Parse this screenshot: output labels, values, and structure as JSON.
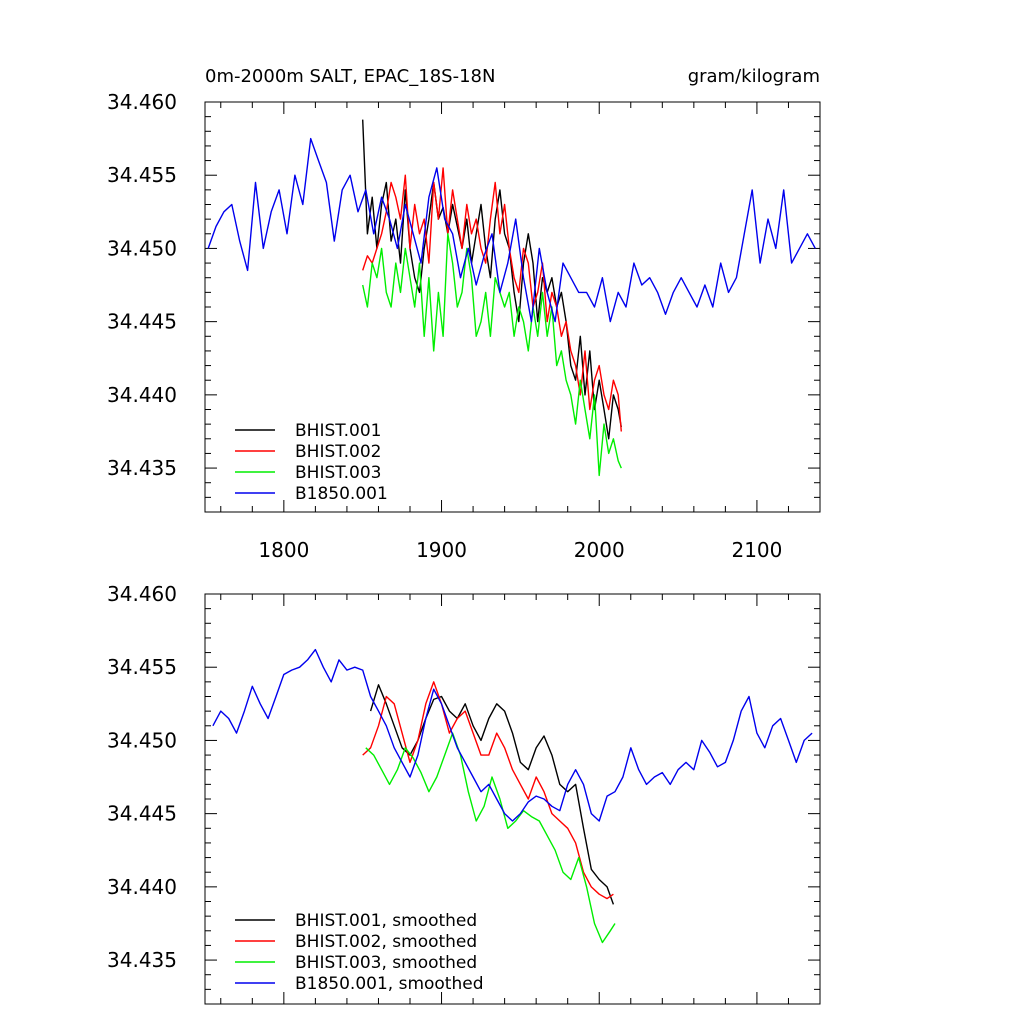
{
  "header": {
    "left_title": "0m-2000m SALT, EPAC_18S-18N",
    "right_title": "gram/kilogram"
  },
  "chart_data": [
    {
      "type": "line",
      "panel": "raw",
      "xlim": [
        1750,
        2140
      ],
      "ylim": [
        34.432,
        34.46
      ],
      "x_ticks": [
        "1800",
        "1900",
        "2000",
        "2100"
      ],
      "y_ticks": [
        "34.460",
        "34.455",
        "34.450",
        "34.445",
        "34.440",
        "34.435"
      ],
      "grid": false,
      "legend_position": "bottom-left",
      "series": [
        {
          "name": "BHIST.001",
          "color": "#000000",
          "x": [
            1850,
            1853,
            1856,
            1859,
            1862,
            1865,
            1868,
            1871,
            1874,
            1877,
            1880,
            1883,
            1886,
            1889,
            1892,
            1895,
            1898,
            1901,
            1904,
            1907,
            1910,
            1913,
            1916,
            1919,
            1922,
            1925,
            1928,
            1931,
            1934,
            1937,
            1940,
            1943,
            1946,
            1949,
            1952,
            1955,
            1958,
            1961,
            1964,
            1967,
            1970,
            1973,
            1976,
            1979,
            1982,
            1985,
            1988,
            1991,
            1994,
            1997,
            2000,
            2003,
            2006,
            2009,
            2012,
            2014
          ],
          "y": [
            34.4588,
            34.451,
            34.4535,
            34.45,
            34.453,
            34.4545,
            34.4505,
            34.452,
            34.449,
            34.454,
            34.45,
            34.448,
            34.447,
            34.45,
            34.452,
            34.4545,
            34.452,
            34.4528,
            34.451,
            34.453,
            34.4515,
            34.45,
            34.452,
            34.449,
            34.451,
            34.453,
            34.45,
            34.448,
            34.452,
            34.454,
            34.451,
            34.45,
            34.447,
            34.445,
            34.449,
            34.451,
            34.449,
            34.445,
            34.448,
            34.447,
            34.448,
            34.446,
            34.447,
            34.445,
            34.442,
            34.441,
            34.444,
            34.44,
            34.443,
            34.439,
            34.441,
            34.439,
            34.437,
            34.44,
            34.439,
            34.4378
          ]
        },
        {
          "name": "BHIST.002",
          "color": "#ff0000",
          "x": [
            1850,
            1853,
            1856,
            1859,
            1862,
            1865,
            1868,
            1871,
            1874,
            1877,
            1880,
            1883,
            1886,
            1889,
            1892,
            1895,
            1898,
            1901,
            1904,
            1907,
            1910,
            1913,
            1916,
            1919,
            1922,
            1925,
            1928,
            1931,
            1934,
            1937,
            1940,
            1943,
            1946,
            1949,
            1952,
            1955,
            1958,
            1961,
            1964,
            1967,
            1970,
            1973,
            1976,
            1979,
            1982,
            1985,
            1988,
            1991,
            1994,
            1997,
            2000,
            2003,
            2006,
            2009,
            2012,
            2014
          ],
          "y": [
            34.4485,
            34.4495,
            34.449,
            34.45,
            34.451,
            34.4525,
            34.4545,
            34.4535,
            34.452,
            34.455,
            34.45,
            34.453,
            34.451,
            34.452,
            34.449,
            34.4545,
            34.452,
            34.4555,
            34.451,
            34.454,
            34.452,
            34.45,
            34.453,
            34.451,
            34.452,
            34.45,
            34.449,
            34.452,
            34.4545,
            34.451,
            34.453,
            34.45,
            34.448,
            34.447,
            34.45,
            34.449,
            34.446,
            34.447,
            34.449,
            34.445,
            34.447,
            34.446,
            34.444,
            34.445,
            34.443,
            34.442,
            34.44,
            34.443,
            34.439,
            34.441,
            34.442,
            34.44,
            34.439,
            34.441,
            34.44,
            34.4375
          ]
        },
        {
          "name": "BHIST.003",
          "color": "#00ee00",
          "x": [
            1850,
            1853,
            1856,
            1859,
            1862,
            1865,
            1868,
            1871,
            1874,
            1877,
            1880,
            1883,
            1886,
            1889,
            1892,
            1895,
            1898,
            1901,
            1904,
            1907,
            1910,
            1913,
            1916,
            1919,
            1922,
            1925,
            1928,
            1931,
            1934,
            1937,
            1940,
            1943,
            1946,
            1949,
            1952,
            1955,
            1958,
            1961,
            1964,
            1967,
            1970,
            1973,
            1976,
            1979,
            1982,
            1985,
            1988,
            1991,
            1994,
            1997,
            2000,
            2003,
            2006,
            2009,
            2012,
            2014
          ],
          "y": [
            34.4475,
            34.446,
            34.449,
            34.448,
            34.45,
            34.447,
            34.446,
            34.449,
            34.447,
            34.45,
            34.448,
            34.446,
            34.449,
            34.444,
            34.448,
            34.443,
            34.447,
            34.444,
            34.451,
            34.449,
            34.446,
            34.447,
            34.45,
            34.448,
            34.444,
            34.445,
            34.447,
            34.444,
            34.448,
            34.447,
            34.446,
            34.447,
            34.444,
            34.446,
            34.445,
            34.443,
            34.446,
            34.444,
            34.447,
            34.444,
            34.446,
            34.442,
            34.443,
            34.441,
            34.44,
            34.438,
            34.441,
            34.439,
            34.437,
            34.44,
            34.4345,
            34.438,
            34.436,
            34.437,
            34.4355,
            34.435
          ]
        },
        {
          "name": "B1850.001",
          "color": "#0000ee",
          "x": [
            1752,
            1757,
            1762,
            1767,
            1772,
            1777,
            1782,
            1787,
            1792,
            1797,
            1802,
            1807,
            1812,
            1817,
            1822,
            1827,
            1832,
            1837,
            1842,
            1847,
            1852,
            1857,
            1862,
            1867,
            1872,
            1877,
            1882,
            1887,
            1892,
            1897,
            1902,
            1907,
            1912,
            1917,
            1922,
            1927,
            1932,
            1937,
            1942,
            1947,
            1952,
            1957,
            1962,
            1967,
            1972,
            1977,
            1982,
            1987,
            1992,
            1997,
            2002,
            2007,
            2012,
            2017,
            2022,
            2027,
            2032,
            2037,
            2042,
            2047,
            2052,
            2057,
            2062,
            2067,
            2072,
            2077,
            2082,
            2087,
            2092,
            2097,
            2102,
            2107,
            2112,
            2117,
            2122,
            2127,
            2132,
            2137
          ],
          "y": [
            34.45,
            34.4515,
            34.4525,
            34.453,
            34.4505,
            34.4485,
            34.4545,
            34.45,
            34.4525,
            34.454,
            34.451,
            34.455,
            34.453,
            34.4575,
            34.456,
            34.4545,
            34.4505,
            34.454,
            34.455,
            34.4525,
            34.454,
            34.451,
            34.4535,
            34.452,
            34.45,
            34.453,
            34.451,
            34.449,
            34.4535,
            34.4555,
            34.452,
            34.451,
            34.448,
            34.45,
            34.4475,
            34.4495,
            34.451,
            34.447,
            34.449,
            34.452,
            34.448,
            34.445,
            34.45,
            34.447,
            34.445,
            34.449,
            34.448,
            34.447,
            34.447,
            34.446,
            34.448,
            34.445,
            34.447,
            34.446,
            34.449,
            34.4475,
            34.448,
            34.447,
            34.4455,
            34.447,
            34.448,
            34.447,
            34.446,
            34.4475,
            34.446,
            34.449,
            34.447,
            34.448,
            34.451,
            34.454,
            34.449,
            34.452,
            34.45,
            34.454,
            34.449,
            34.45,
            34.451,
            34.45
          ]
        }
      ]
    },
    {
      "type": "line",
      "panel": "smoothed",
      "xlim": [
        1750,
        2140
      ],
      "ylim": [
        34.432,
        34.46
      ],
      "y_ticks": [
        "34.460",
        "34.455",
        "34.450",
        "34.445",
        "34.440",
        "34.435"
      ],
      "grid": false,
      "legend_position": "bottom-left",
      "series": [
        {
          "name": "BHIST.001, smoothed",
          "color": "#000000",
          "x": [
            1855,
            1860,
            1865,
            1870,
            1875,
            1880,
            1885,
            1890,
            1895,
            1900,
            1905,
            1910,
            1915,
            1920,
            1925,
            1930,
            1935,
            1940,
            1945,
            1950,
            1955,
            1960,
            1965,
            1970,
            1975,
            1980,
            1985,
            1990,
            1995,
            2000,
            2005,
            2009
          ],
          "y": [
            34.452,
            34.4538,
            34.4525,
            34.451,
            34.4495,
            34.449,
            34.45,
            34.4515,
            34.4528,
            34.453,
            34.452,
            34.4515,
            34.4525,
            34.451,
            34.45,
            34.4515,
            34.4525,
            34.452,
            34.4505,
            34.4485,
            34.448,
            34.4495,
            34.4503,
            34.449,
            34.447,
            34.4465,
            34.447,
            34.444,
            34.4412,
            34.4405,
            34.44,
            34.4388
          ]
        },
        {
          "name": "BHIST.002, smoothed",
          "color": "#ff0000",
          "x": [
            1850,
            1855,
            1860,
            1865,
            1870,
            1875,
            1880,
            1885,
            1890,
            1895,
            1900,
            1905,
            1910,
            1915,
            1920,
            1925,
            1930,
            1935,
            1940,
            1945,
            1950,
            1955,
            1960,
            1965,
            1970,
            1975,
            1980,
            1985,
            1990,
            1995,
            2000,
            2005,
            2009
          ],
          "y": [
            34.449,
            34.4495,
            34.451,
            34.453,
            34.4525,
            34.4505,
            34.4485,
            34.45,
            34.4525,
            34.454,
            34.4525,
            34.4505,
            34.4515,
            34.452,
            34.4505,
            34.449,
            34.449,
            34.4505,
            34.4495,
            34.448,
            34.447,
            34.446,
            34.4475,
            34.4465,
            34.445,
            34.4445,
            34.444,
            34.443,
            34.441,
            34.44,
            34.4395,
            34.4392,
            34.4395
          ]
        },
        {
          "name": "BHIST.003, smoothed",
          "color": "#00ee00",
          "x": [
            1852,
            1857,
            1862,
            1867,
            1872,
            1877,
            1882,
            1887,
            1892,
            1897,
            1902,
            1907,
            1912,
            1917,
            1922,
            1927,
            1932,
            1937,
            1942,
            1947,
            1952,
            1957,
            1962,
            1967,
            1972,
            1977,
            1982,
            1987,
            1992,
            1997,
            2002,
            2007,
            2010
          ],
          "y": [
            34.4495,
            34.449,
            34.448,
            34.447,
            34.448,
            34.4495,
            34.4488,
            34.4478,
            34.4465,
            34.4475,
            34.449,
            34.4505,
            34.449,
            34.4465,
            34.4445,
            34.4455,
            34.4475,
            34.446,
            34.444,
            34.4445,
            34.4452,
            34.4448,
            34.4445,
            34.4435,
            34.4425,
            34.441,
            34.4405,
            34.442,
            34.44,
            34.4375,
            34.4362,
            34.437,
            34.4375
          ]
        },
        {
          "name": "B1850.001, smoothed",
          "color": "#0000ee",
          "x": [
            1755,
            1760,
            1765,
            1770,
            1775,
            1780,
            1785,
            1790,
            1795,
            1800,
            1805,
            1810,
            1815,
            1820,
            1825,
            1830,
            1835,
            1840,
            1845,
            1850,
            1855,
            1860,
            1865,
            1870,
            1875,
            1880,
            1885,
            1890,
            1895,
            1900,
            1905,
            1910,
            1915,
            1920,
            1925,
            1930,
            1935,
            1940,
            1945,
            1950,
            1955,
            1960,
            1965,
            1970,
            1975,
            1980,
            1985,
            1990,
            1995,
            2000,
            2005,
            2010,
            2015,
            2020,
            2025,
            2030,
            2035,
            2040,
            2045,
            2050,
            2055,
            2060,
            2065,
            2070,
            2075,
            2080,
            2085,
            2090,
            2095,
            2100,
            2105,
            2110,
            2115,
            2120,
            2125,
            2130,
            2135
          ],
          "y": [
            34.451,
            34.452,
            34.4515,
            34.4505,
            34.452,
            34.4537,
            34.4525,
            34.4515,
            34.453,
            34.4545,
            34.4548,
            34.455,
            34.4555,
            34.4562,
            34.455,
            34.454,
            34.4555,
            34.4548,
            34.455,
            34.4548,
            34.453,
            34.452,
            34.451,
            34.4495,
            34.4485,
            34.4475,
            34.449,
            34.4515,
            34.4535,
            34.4525,
            34.451,
            34.4495,
            34.4485,
            34.4475,
            34.4465,
            34.447,
            34.446,
            34.445,
            34.4445,
            34.445,
            34.4458,
            34.4462,
            34.446,
            34.4455,
            34.4452,
            34.447,
            34.448,
            34.447,
            34.445,
            34.4445,
            34.4462,
            34.4465,
            34.4475,
            34.4495,
            34.448,
            34.447,
            34.4475,
            34.4478,
            34.447,
            34.448,
            34.4485,
            34.448,
            34.45,
            34.4492,
            34.4482,
            34.4485,
            34.45,
            34.452,
            34.453,
            34.4505,
            34.4495,
            34.451,
            34.4515,
            34.45,
            34.4485,
            34.45,
            34.4505
          ]
        }
      ]
    }
  ]
}
